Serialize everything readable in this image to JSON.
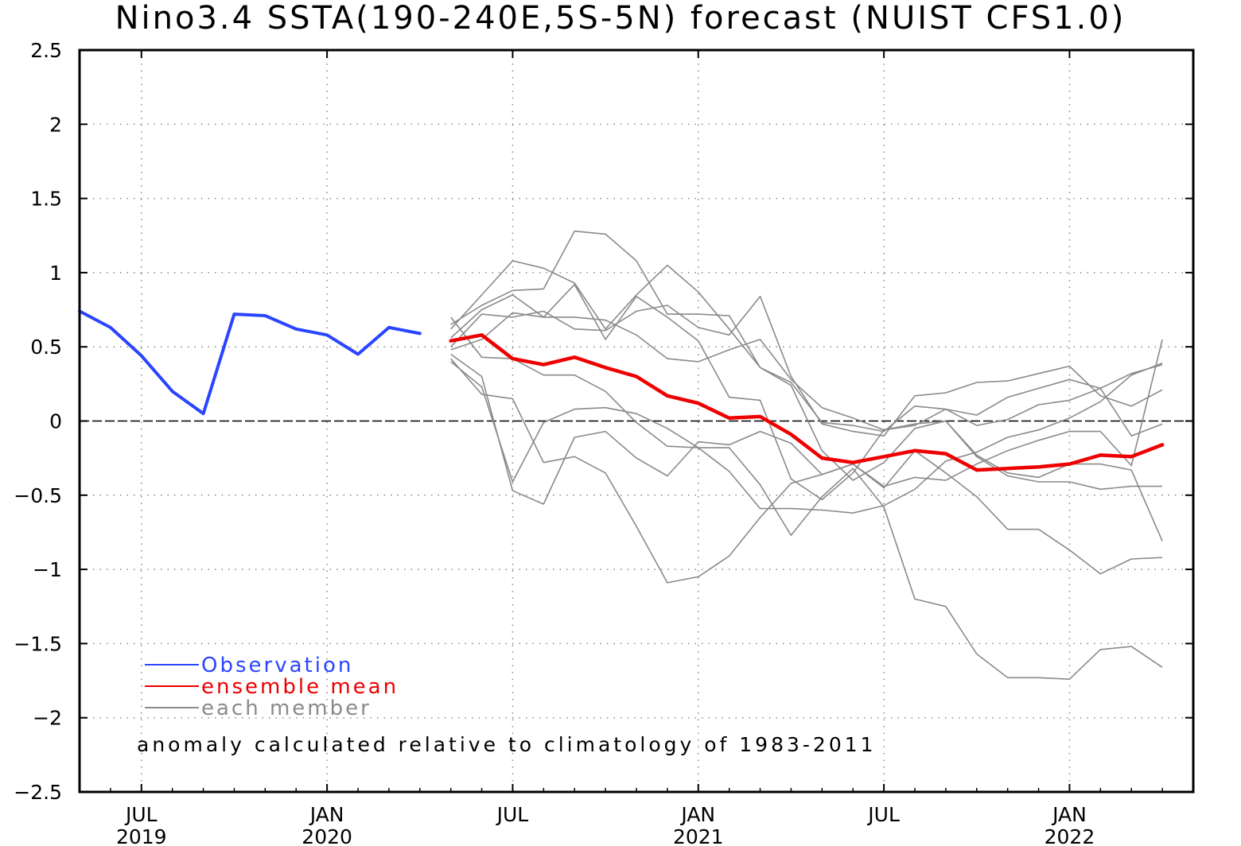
{
  "chart_data": {
    "type": "line",
    "title": "Nino3.4 SSTA(190-240E,5S-5N) forecast (NUIST CFS1.0)",
    "ylim": [
      -2.5,
      2.5
    ],
    "yticks": [
      2.5,
      2,
      1.5,
      1,
      0.5,
      0,
      -0.5,
      -1,
      -1.5,
      -2,
      -2.5
    ],
    "ytick_labels": [
      "2.5",
      "2",
      "1.5",
      "1",
      "0.5",
      "0",
      "−0.5",
      "−1",
      "−1.5",
      "−2",
      "−2.5"
    ],
    "xlim": [
      "2019-05",
      "2022-05"
    ],
    "xticks": [
      {
        "month": "2019-07",
        "label1": "JUL",
        "label2": "2019"
      },
      {
        "month": "2020-01",
        "label1": "JAN",
        "label2": "2020"
      },
      {
        "month": "2020-07",
        "label1": "JUL",
        "label2": ""
      },
      {
        "month": "2021-01",
        "label1": "JAN",
        "label2": "2021"
      },
      {
        "month": "2021-07",
        "label1": "JUL",
        "label2": ""
      },
      {
        "month": "2022-01",
        "label1": "JAN",
        "label2": "2022"
      }
    ],
    "grid": true,
    "zero_line": true,
    "series": [
      {
        "name": "Observation",
        "role": "observation",
        "color": "#2a45ff",
        "x": [
          "2019-05",
          "2019-06",
          "2019-07",
          "2019-08",
          "2019-09",
          "2019-10",
          "2019-11",
          "2019-12",
          "2020-01",
          "2020-02",
          "2020-03",
          "2020-04"
        ],
        "y": [
          0.74,
          0.63,
          0.44,
          0.2,
          0.05,
          0.72,
          0.71,
          0.62,
          0.58,
          0.45,
          0.63,
          0.59
        ]
      },
      {
        "name": "ensemble mean",
        "role": "mean",
        "color": "#ee0000",
        "x": [
          "2020-05",
          "2020-06",
          "2020-07",
          "2020-08",
          "2020-09",
          "2020-10",
          "2020-11",
          "2020-12",
          "2021-01",
          "2021-02",
          "2021-03",
          "2021-04",
          "2021-05",
          "2021-06",
          "2021-07",
          "2021-08",
          "2021-09",
          "2021-10",
          "2021-11",
          "2021-12",
          "2022-01",
          "2022-02",
          "2022-03",
          "2022-04"
        ],
        "y": [
          0.54,
          0.58,
          0.42,
          0.38,
          0.43,
          0.36,
          0.3,
          0.17,
          0.12,
          0.02,
          0.03,
          -0.09,
          -0.25,
          -0.28,
          -0.24,
          -0.2,
          -0.22,
          -0.33,
          -0.32,
          -0.31,
          -0.29,
          -0.23,
          -0.24,
          -0.16
        ]
      }
    ],
    "members": {
      "name": "each member",
      "color": "#8a8a8a",
      "x": [
        "2020-05",
        "2020-06",
        "2020-07",
        "2020-08",
        "2020-09",
        "2020-10",
        "2020-11",
        "2020-12",
        "2021-01",
        "2021-02",
        "2021-03",
        "2021-04",
        "2021-05",
        "2021-06",
        "2021-07",
        "2021-08",
        "2021-09",
        "2021-10",
        "2021-11",
        "2021-12",
        "2022-01",
        "2022-02",
        "2022-03",
        "2022-04"
      ],
      "values": [
        [
          0.62,
          0.85,
          1.08,
          1.03,
          0.93,
          0.62,
          0.85,
          1.05,
          0.87,
          0.62,
          0.36,
          0.24,
          -0.2,
          -0.4,
          -0.28,
          -0.05,
          0.0,
          -0.24,
          -0.37,
          -0.41,
          -0.41,
          -0.46,
          -0.44,
          -0.44
        ],
        [
          0.65,
          0.78,
          0.88,
          0.89,
          1.28,
          1.26,
          1.08,
          0.72,
          0.72,
          0.71,
          0.36,
          0.26,
          -0.01,
          -0.03,
          -0.07,
          0.1,
          0.08,
          -0.03,
          0.01,
          0.11,
          0.14,
          0.22,
          0.32,
          0.38
        ],
        [
          0.48,
          0.55,
          0.73,
          0.7,
          0.7,
          0.68,
          0.58,
          0.42,
          0.4,
          0.48,
          0.55,
          0.28,
          0.09,
          0.02,
          -0.06,
          -0.03,
          0.08,
          0.04,
          0.16,
          0.22,
          0.28,
          0.22,
          -0.1,
          -0.02
        ],
        [
          0.4,
          0.23,
          -0.41,
          -0.01,
          0.08,
          0.09,
          0.05,
          -0.05,
          -0.18,
          -0.18,
          -0.43,
          -0.77,
          -0.51,
          -0.32,
          -0.58,
          -1.2,
          -1.25,
          -1.57,
          -1.73,
          -1.73,
          -1.74,
          -1.54,
          -1.52,
          -1.66
        ],
        [
          0.45,
          0.3,
          -0.47,
          -0.56,
          -0.11,
          -0.07,
          -0.25,
          -0.37,
          -0.14,
          -0.16,
          -0.07,
          -0.15,
          -0.36,
          -0.29,
          -0.45,
          -0.2,
          -0.35,
          -0.51,
          -0.73,
          -0.73,
          -0.87,
          -1.03,
          -0.93,
          -0.92
        ],
        [
          0.7,
          0.43,
          0.42,
          0.31,
          0.31,
          0.2,
          -0.01,
          -0.17,
          -0.18,
          -0.34,
          -0.59,
          -0.59,
          -0.6,
          -0.62,
          -0.57,
          -0.46,
          -0.27,
          -0.21,
          -0.11,
          -0.06,
          0.02,
          0.13,
          0.31,
          0.39
        ],
        [
          0.5,
          0.72,
          0.7,
          0.74,
          0.62,
          0.61,
          0.74,
          0.78,
          0.63,
          0.58,
          0.84,
          0.3,
          -0.02,
          -0.07,
          -0.1,
          0.17,
          0.19,
          0.26,
          0.27,
          0.32,
          0.37,
          0.17,
          0.1,
          0.21
        ],
        [
          0.56,
          0.75,
          0.85,
          0.7,
          0.92,
          0.55,
          0.84,
          0.7,
          0.54,
          0.16,
          0.14,
          -0.39,
          -0.53,
          -0.35,
          -0.06,
          -0.02,
          0.0,
          -0.23,
          -0.35,
          -0.38,
          -0.29,
          -0.29,
          -0.33,
          -0.81
        ],
        [
          0.42,
          0.18,
          0.15,
          -0.28,
          -0.24,
          -0.35,
          -0.71,
          -1.09,
          -1.05,
          -0.91,
          -0.65,
          -0.42,
          -0.36,
          -0.29,
          -0.44,
          -0.38,
          -0.4,
          -0.29,
          -0.2,
          -0.13,
          -0.07,
          -0.07,
          -0.3,
          0.55
        ]
      ]
    },
    "legend": {
      "placement": "lower-left",
      "entries": [
        {
          "label": "Observation",
          "color": "#2a45ff"
        },
        {
          "label": "ensemble mean",
          "color": "#ee0000"
        },
        {
          "label": "each member",
          "color": "#8a8a8a"
        }
      ]
    },
    "annotation": "anomaly calculated relative to climatology of 1983-2011"
  }
}
